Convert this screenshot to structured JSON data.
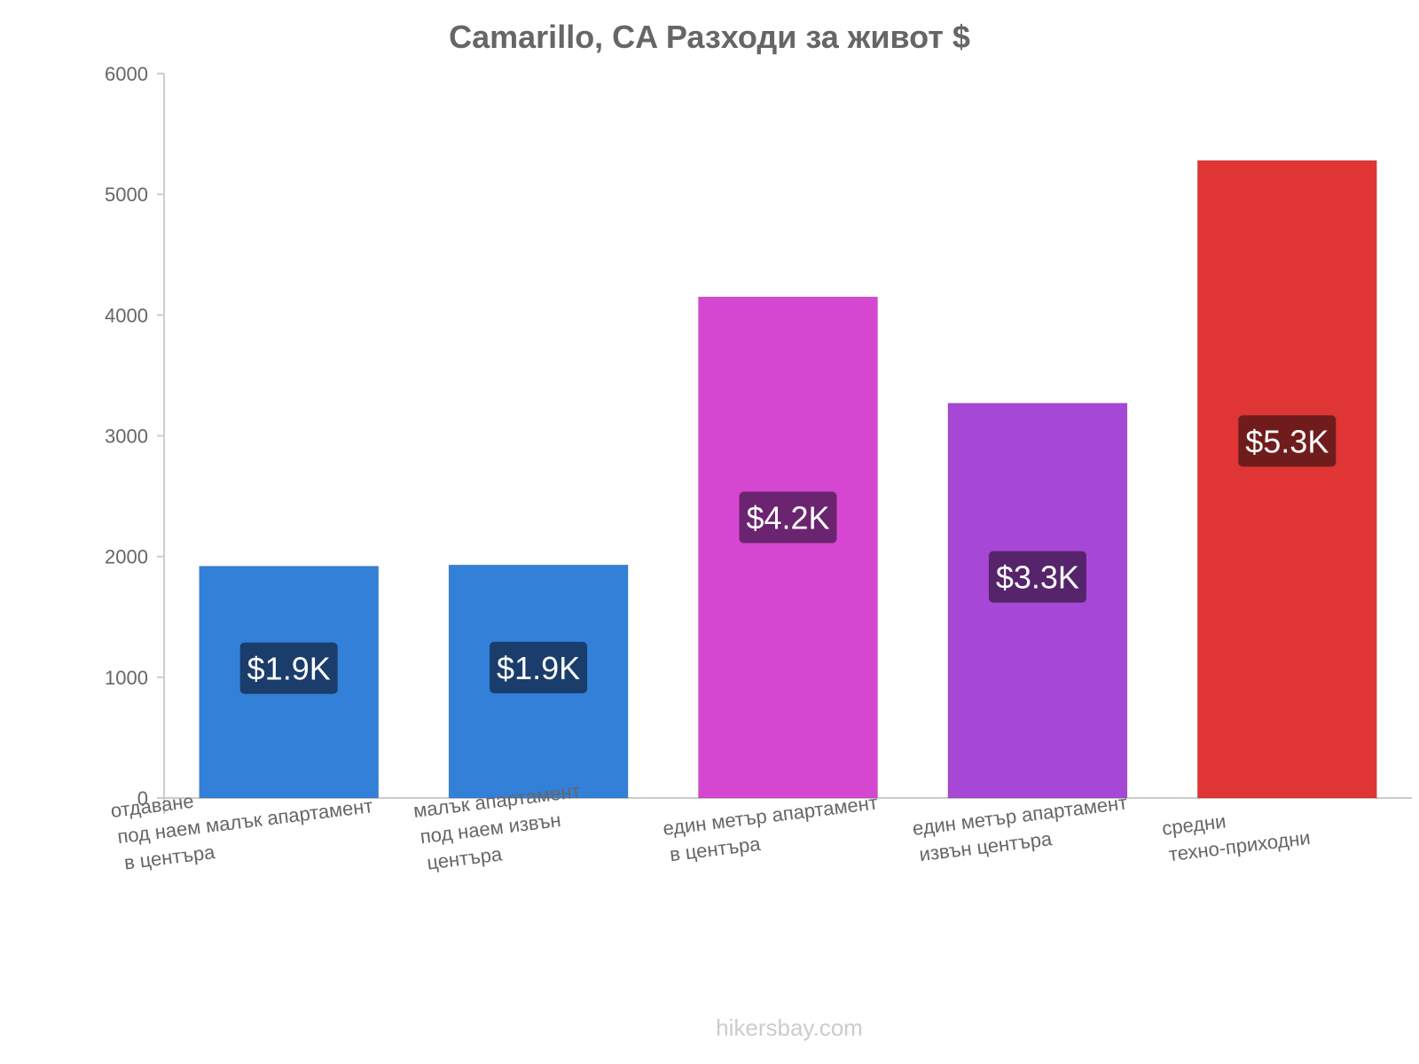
{
  "chart_data": {
    "type": "bar",
    "title": "Camarillo, CA Разходи за живот $",
    "categories": [
      [
        "отдаване",
        "под наем малък апартамент",
        "в центъра"
      ],
      [
        "малък апартамент",
        "под наем извън",
        "центъра"
      ],
      [
        "един метър апартамент",
        "в центъра"
      ],
      [
        "един метър апартамент",
        "извън центъра"
      ],
      [
        "средни",
        "техно-приходни"
      ]
    ],
    "values": [
      1920,
      1930,
      4150,
      3270,
      5280
    ],
    "data_labels": [
      "$1.9K",
      "$1.9K",
      "$4.2K",
      "$3.3K",
      "$5.3K"
    ],
    "bar_colors": [
      "#3380d9",
      "#3380d9",
      "#d647d1",
      "#a647d6",
      "#e03535"
    ],
    "label_bg_colors": [
      "#1a3d6b",
      "#1a3d6b",
      "#6b2470",
      "#55246b",
      "#701c1c"
    ],
    "ylim": [
      0,
      6000
    ],
    "yticks": [
      0,
      1000,
      2000,
      3000,
      4000,
      5000,
      6000
    ],
    "xlabel": "",
    "ylabel": "",
    "grid": false
  },
  "watermark": "hikersbay.com"
}
